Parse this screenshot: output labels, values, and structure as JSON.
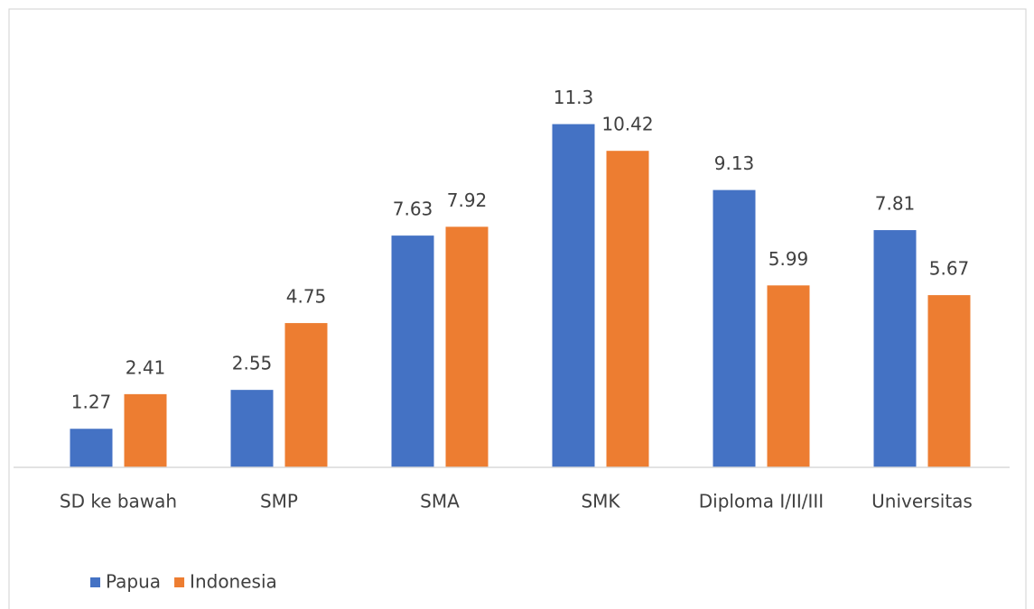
{
  "chart_data": {
    "type": "bar",
    "categories": [
      "SD ke bawah",
      "SMP",
      "SMA",
      "SMK",
      "Diploma I/II/III",
      "Universitas"
    ],
    "series": [
      {
        "name": "Papua",
        "color": "#4472c4",
        "values": [
          1.27,
          2.55,
          7.63,
          11.3,
          9.13,
          7.81
        ]
      },
      {
        "name": "Indonesia",
        "color": "#ed7d31",
        "values": [
          2.41,
          4.75,
          7.92,
          10.42,
          5.99,
          5.67
        ]
      }
    ],
    "ylim": [
      0,
      12
    ],
    "legend": "bottom-left"
  }
}
